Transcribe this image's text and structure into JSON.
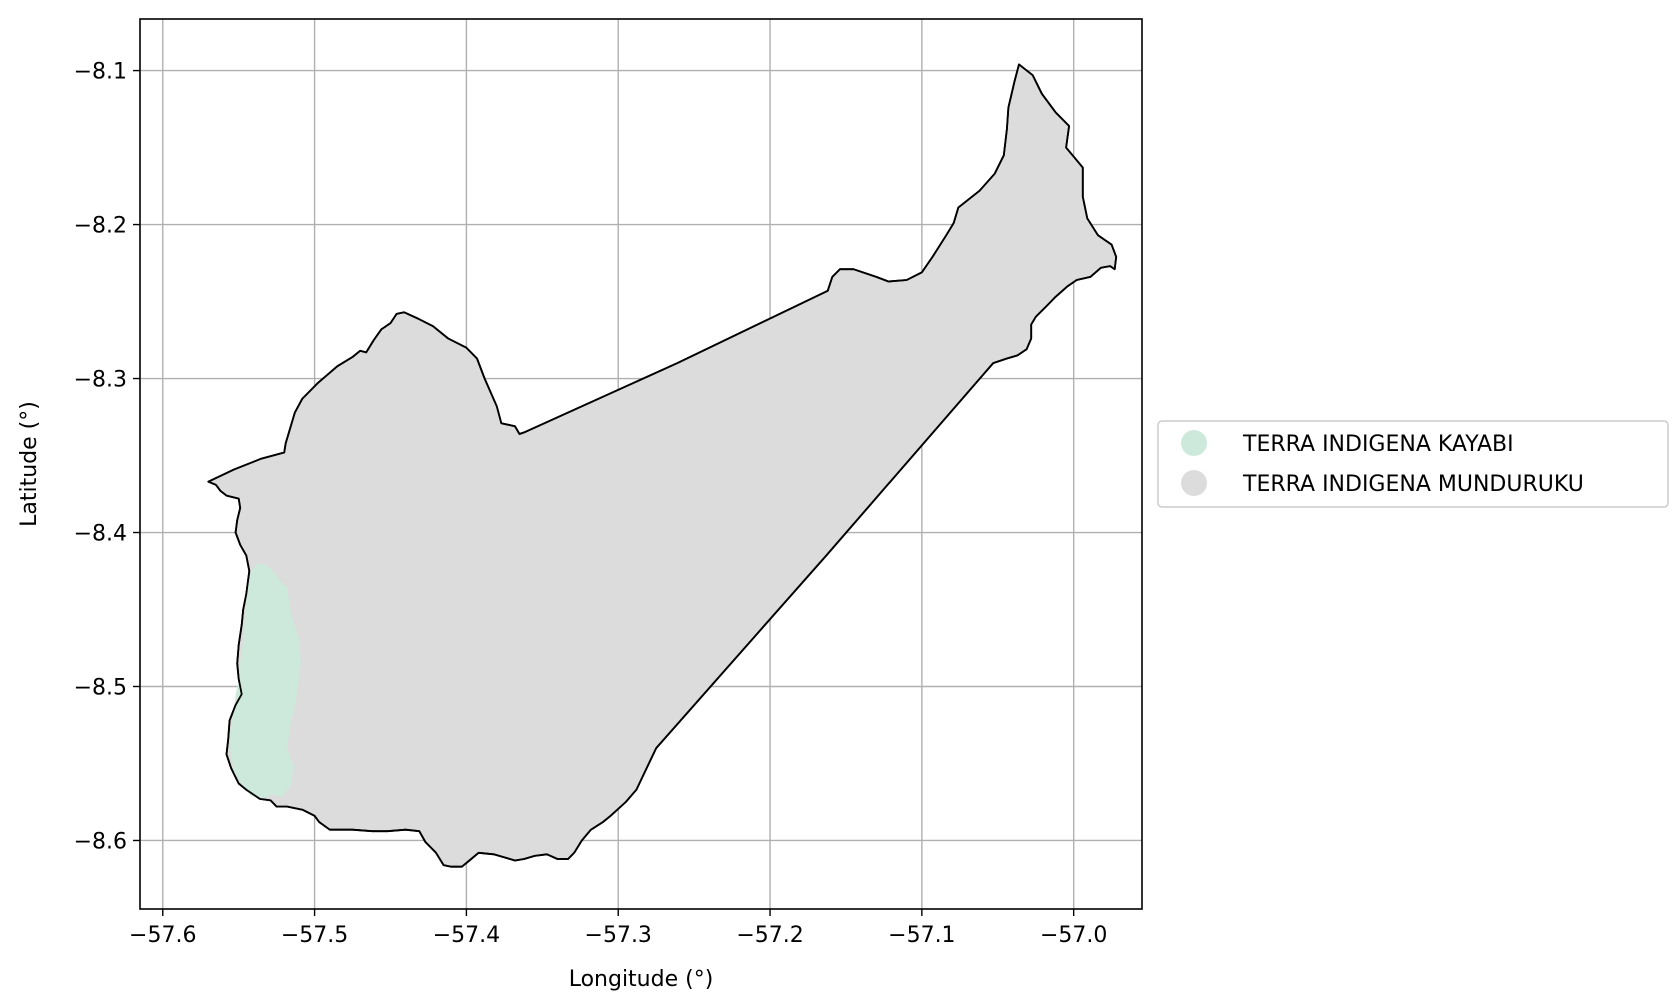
{
  "map": {
    "xlabel": "Longitude (°)",
    "ylabel": "Latitude (°)",
    "xlim": [
      -57.615,
      -56.955
    ],
    "ylim": [
      -8.6445,
      -8.0665
    ],
    "grid": true,
    "xticks": [
      {
        "value": -57.6,
        "label": "−57.6"
      },
      {
        "value": -57.5,
        "label": "−57.5"
      },
      {
        "value": -57.4,
        "label": "−57.4"
      },
      {
        "value": -57.3,
        "label": "−57.3"
      },
      {
        "value": -57.2,
        "label": "−57.2"
      },
      {
        "value": -57.1,
        "label": "−57.1"
      },
      {
        "value": -57.0,
        "label": "−57.0"
      }
    ],
    "yticks": [
      {
        "value": -8.1,
        "label": "−8.1"
      },
      {
        "value": -8.2,
        "label": "−8.2"
      },
      {
        "value": -8.3,
        "label": "−8.3"
      },
      {
        "value": -8.4,
        "label": "−8.4"
      },
      {
        "value": -8.5,
        "label": "−8.5"
      },
      {
        "value": -8.6,
        "label": "−8.6"
      }
    ],
    "legend_position": "outside-right",
    "territories": [
      {
        "name": "TERRA INDIGENA KAYABI",
        "color": "#cde9dc",
        "outline": "none",
        "polygon": [
          [
            -57.537,
            -8.42
          ],
          [
            -57.53,
            -8.422
          ],
          [
            -57.523,
            -8.431
          ],
          [
            -57.518,
            -8.436
          ],
          [
            -57.516,
            -8.45
          ],
          [
            -57.514,
            -8.458
          ],
          [
            -57.51,
            -8.47
          ],
          [
            -57.509,
            -8.485
          ],
          [
            -57.511,
            -8.5
          ],
          [
            -57.513,
            -8.512
          ],
          [
            -57.516,
            -8.525
          ],
          [
            -57.518,
            -8.54
          ],
          [
            -57.514,
            -8.552
          ],
          [
            -57.516,
            -8.565
          ],
          [
            -57.522,
            -8.572
          ],
          [
            -57.527,
            -8.57
          ],
          [
            -57.535,
            -8.573
          ],
          [
            -57.542,
            -8.571
          ],
          [
            -57.548,
            -8.564
          ],
          [
            -57.553,
            -8.556
          ],
          [
            -57.555,
            -8.545
          ],
          [
            -57.556,
            -8.535
          ],
          [
            -57.555,
            -8.525
          ],
          [
            -57.553,
            -8.515
          ],
          [
            -57.552,
            -8.505
          ],
          [
            -57.55,
            -8.497
          ],
          [
            -57.549,
            -8.485
          ],
          [
            -57.547,
            -8.47
          ],
          [
            -57.546,
            -8.455
          ],
          [
            -57.545,
            -8.44
          ],
          [
            -57.542,
            -8.425
          ]
        ]
      },
      {
        "name": "TERRA INDIGENA MUNDURUKU",
        "color": "#dcdcdc",
        "outline": "#000000",
        "polygon": [
          [
            -57.57,
            -8.367
          ],
          [
            -57.553,
            -8.359
          ],
          [
            -57.535,
            -8.352
          ],
          [
            -57.52,
            -8.348
          ],
          [
            -57.519,
            -8.342
          ],
          [
            -57.513,
            -8.322
          ],
          [
            -57.508,
            -8.313
          ],
          [
            -57.498,
            -8.303
          ],
          [
            -57.485,
            -8.292
          ],
          [
            -57.475,
            -8.286
          ],
          [
            -57.47,
            -8.282
          ],
          [
            -57.466,
            -8.283
          ],
          [
            -57.461,
            -8.275
          ],
          [
            -57.456,
            -8.268
          ],
          [
            -57.45,
            -8.264
          ],
          [
            -57.446,
            -8.258
          ],
          [
            -57.441,
            -8.257
          ],
          [
            -57.432,
            -8.261
          ],
          [
            -57.422,
            -8.266
          ],
          [
            -57.412,
            -8.274
          ],
          [
            -57.4,
            -8.28
          ],
          [
            -57.393,
            -8.287
          ],
          [
            -57.388,
            -8.3
          ],
          [
            -57.38,
            -8.318
          ],
          [
            -57.377,
            -8.329
          ],
          [
            -57.368,
            -8.331
          ],
          [
            -57.365,
            -8.336
          ],
          [
            -57.362,
            -8.335
          ],
          [
            -57.261,
            -8.29
          ],
          [
            -57.162,
            -8.243
          ],
          [
            -57.159,
            -8.234
          ],
          [
            -57.154,
            -8.229
          ],
          [
            -57.145,
            -8.229
          ],
          [
            -57.13,
            -8.234
          ],
          [
            -57.122,
            -8.237
          ],
          [
            -57.11,
            -8.236
          ],
          [
            -57.1,
            -8.231
          ],
          [
            -57.093,
            -8.221
          ],
          [
            -57.084,
            -8.207
          ],
          [
            -57.079,
            -8.199
          ],
          [
            -57.076,
            -8.189
          ],
          [
            -57.062,
            -8.178
          ],
          [
            -57.052,
            -8.167
          ],
          [
            -57.046,
            -8.155
          ],
          [
            -57.044,
            -8.138
          ],
          [
            -57.043,
            -8.124
          ],
          [
            -57.039,
            -8.107
          ],
          [
            -57.036,
            -8.096
          ],
          [
            -57.027,
            -8.103
          ],
          [
            -57.021,
            -8.115
          ],
          [
            -57.012,
            -8.127
          ],
          [
            -57.003,
            -8.136
          ],
          [
            -57.005,
            -8.15
          ],
          [
            -56.999,
            -8.157
          ],
          [
            -56.994,
            -8.163
          ],
          [
            -56.994,
            -8.182
          ],
          [
            -56.991,
            -8.196
          ],
          [
            -56.984,
            -8.207
          ],
          [
            -56.975,
            -8.213
          ],
          [
            -56.972,
            -8.221
          ],
          [
            -56.973,
            -8.229
          ],
          [
            -56.976,
            -8.227
          ],
          [
            -56.982,
            -8.228
          ],
          [
            -56.989,
            -8.234
          ],
          [
            -56.998,
            -8.236
          ],
          [
            -57.004,
            -8.24
          ],
          [
            -57.012,
            -8.247
          ],
          [
            -57.018,
            -8.253
          ],
          [
            -57.025,
            -8.26
          ],
          [
            -57.028,
            -8.265
          ],
          [
            -57.028,
            -8.274
          ],
          [
            -57.031,
            -8.281
          ],
          [
            -57.037,
            -8.285
          ],
          [
            -57.044,
            -8.287
          ],
          [
            -57.053,
            -8.29
          ],
          [
            -57.163,
            -8.415
          ],
          [
            -57.275,
            -8.54
          ],
          [
            -57.288,
            -8.567
          ],
          [
            -57.295,
            -8.575
          ],
          [
            -57.305,
            -8.584
          ],
          [
            -57.31,
            -8.588
          ],
          [
            -57.318,
            -8.593
          ],
          [
            -57.324,
            -8.6
          ],
          [
            -57.329,
            -8.608
          ],
          [
            -57.333,
            -8.612
          ],
          [
            -57.34,
            -8.612
          ],
          [
            -57.347,
            -8.609
          ],
          [
            -57.355,
            -8.61
          ],
          [
            -57.362,
            -8.612
          ],
          [
            -57.368,
            -8.613
          ],
          [
            -57.375,
            -8.611
          ],
          [
            -57.382,
            -8.609
          ],
          [
            -57.392,
            -8.608
          ],
          [
            -57.398,
            -8.613
          ],
          [
            -57.403,
            -8.617
          ],
          [
            -57.41,
            -8.617
          ],
          [
            -57.415,
            -8.616
          ],
          [
            -57.42,
            -8.608
          ],
          [
            -57.427,
            -8.601
          ],
          [
            -57.431,
            -8.594
          ],
          [
            -57.44,
            -8.593
          ],
          [
            -57.452,
            -8.594
          ],
          [
            -57.462,
            -8.594
          ],
          [
            -57.475,
            -8.593
          ],
          [
            -57.483,
            -8.593
          ],
          [
            -57.49,
            -8.593
          ],
          [
            -57.497,
            -8.588
          ],
          [
            -57.5,
            -8.584
          ],
          [
            -57.508,
            -8.58
          ],
          [
            -57.518,
            -8.578
          ],
          [
            -57.525,
            -8.578
          ],
          [
            -57.529,
            -8.574
          ],
          [
            -57.536,
            -8.573
          ],
          [
            -57.545,
            -8.567
          ],
          [
            -57.55,
            -8.563
          ],
          [
            -57.555,
            -8.553
          ],
          [
            -57.558,
            -8.544
          ],
          [
            -57.557,
            -8.535
          ],
          [
            -57.556,
            -8.522
          ],
          [
            -57.552,
            -8.512
          ],
          [
            -57.548,
            -8.505
          ],
          [
            -57.55,
            -8.495
          ],
          [
            -57.551,
            -8.485
          ],
          [
            -57.55,
            -8.473
          ],
          [
            -57.548,
            -8.46
          ],
          [
            -57.547,
            -8.45
          ],
          [
            -57.545,
            -8.44
          ],
          [
            -57.543,
            -8.425
          ],
          [
            -57.545,
            -8.415
          ],
          [
            -57.549,
            -8.408
          ],
          [
            -57.552,
            -8.4
          ],
          [
            -57.551,
            -8.392
          ],
          [
            -57.549,
            -8.384
          ],
          [
            -57.55,
            -8.378
          ],
          [
            -57.558,
            -8.376
          ],
          [
            -57.562,
            -8.373
          ],
          [
            -57.565,
            -8.369
          ]
        ]
      }
    ]
  }
}
